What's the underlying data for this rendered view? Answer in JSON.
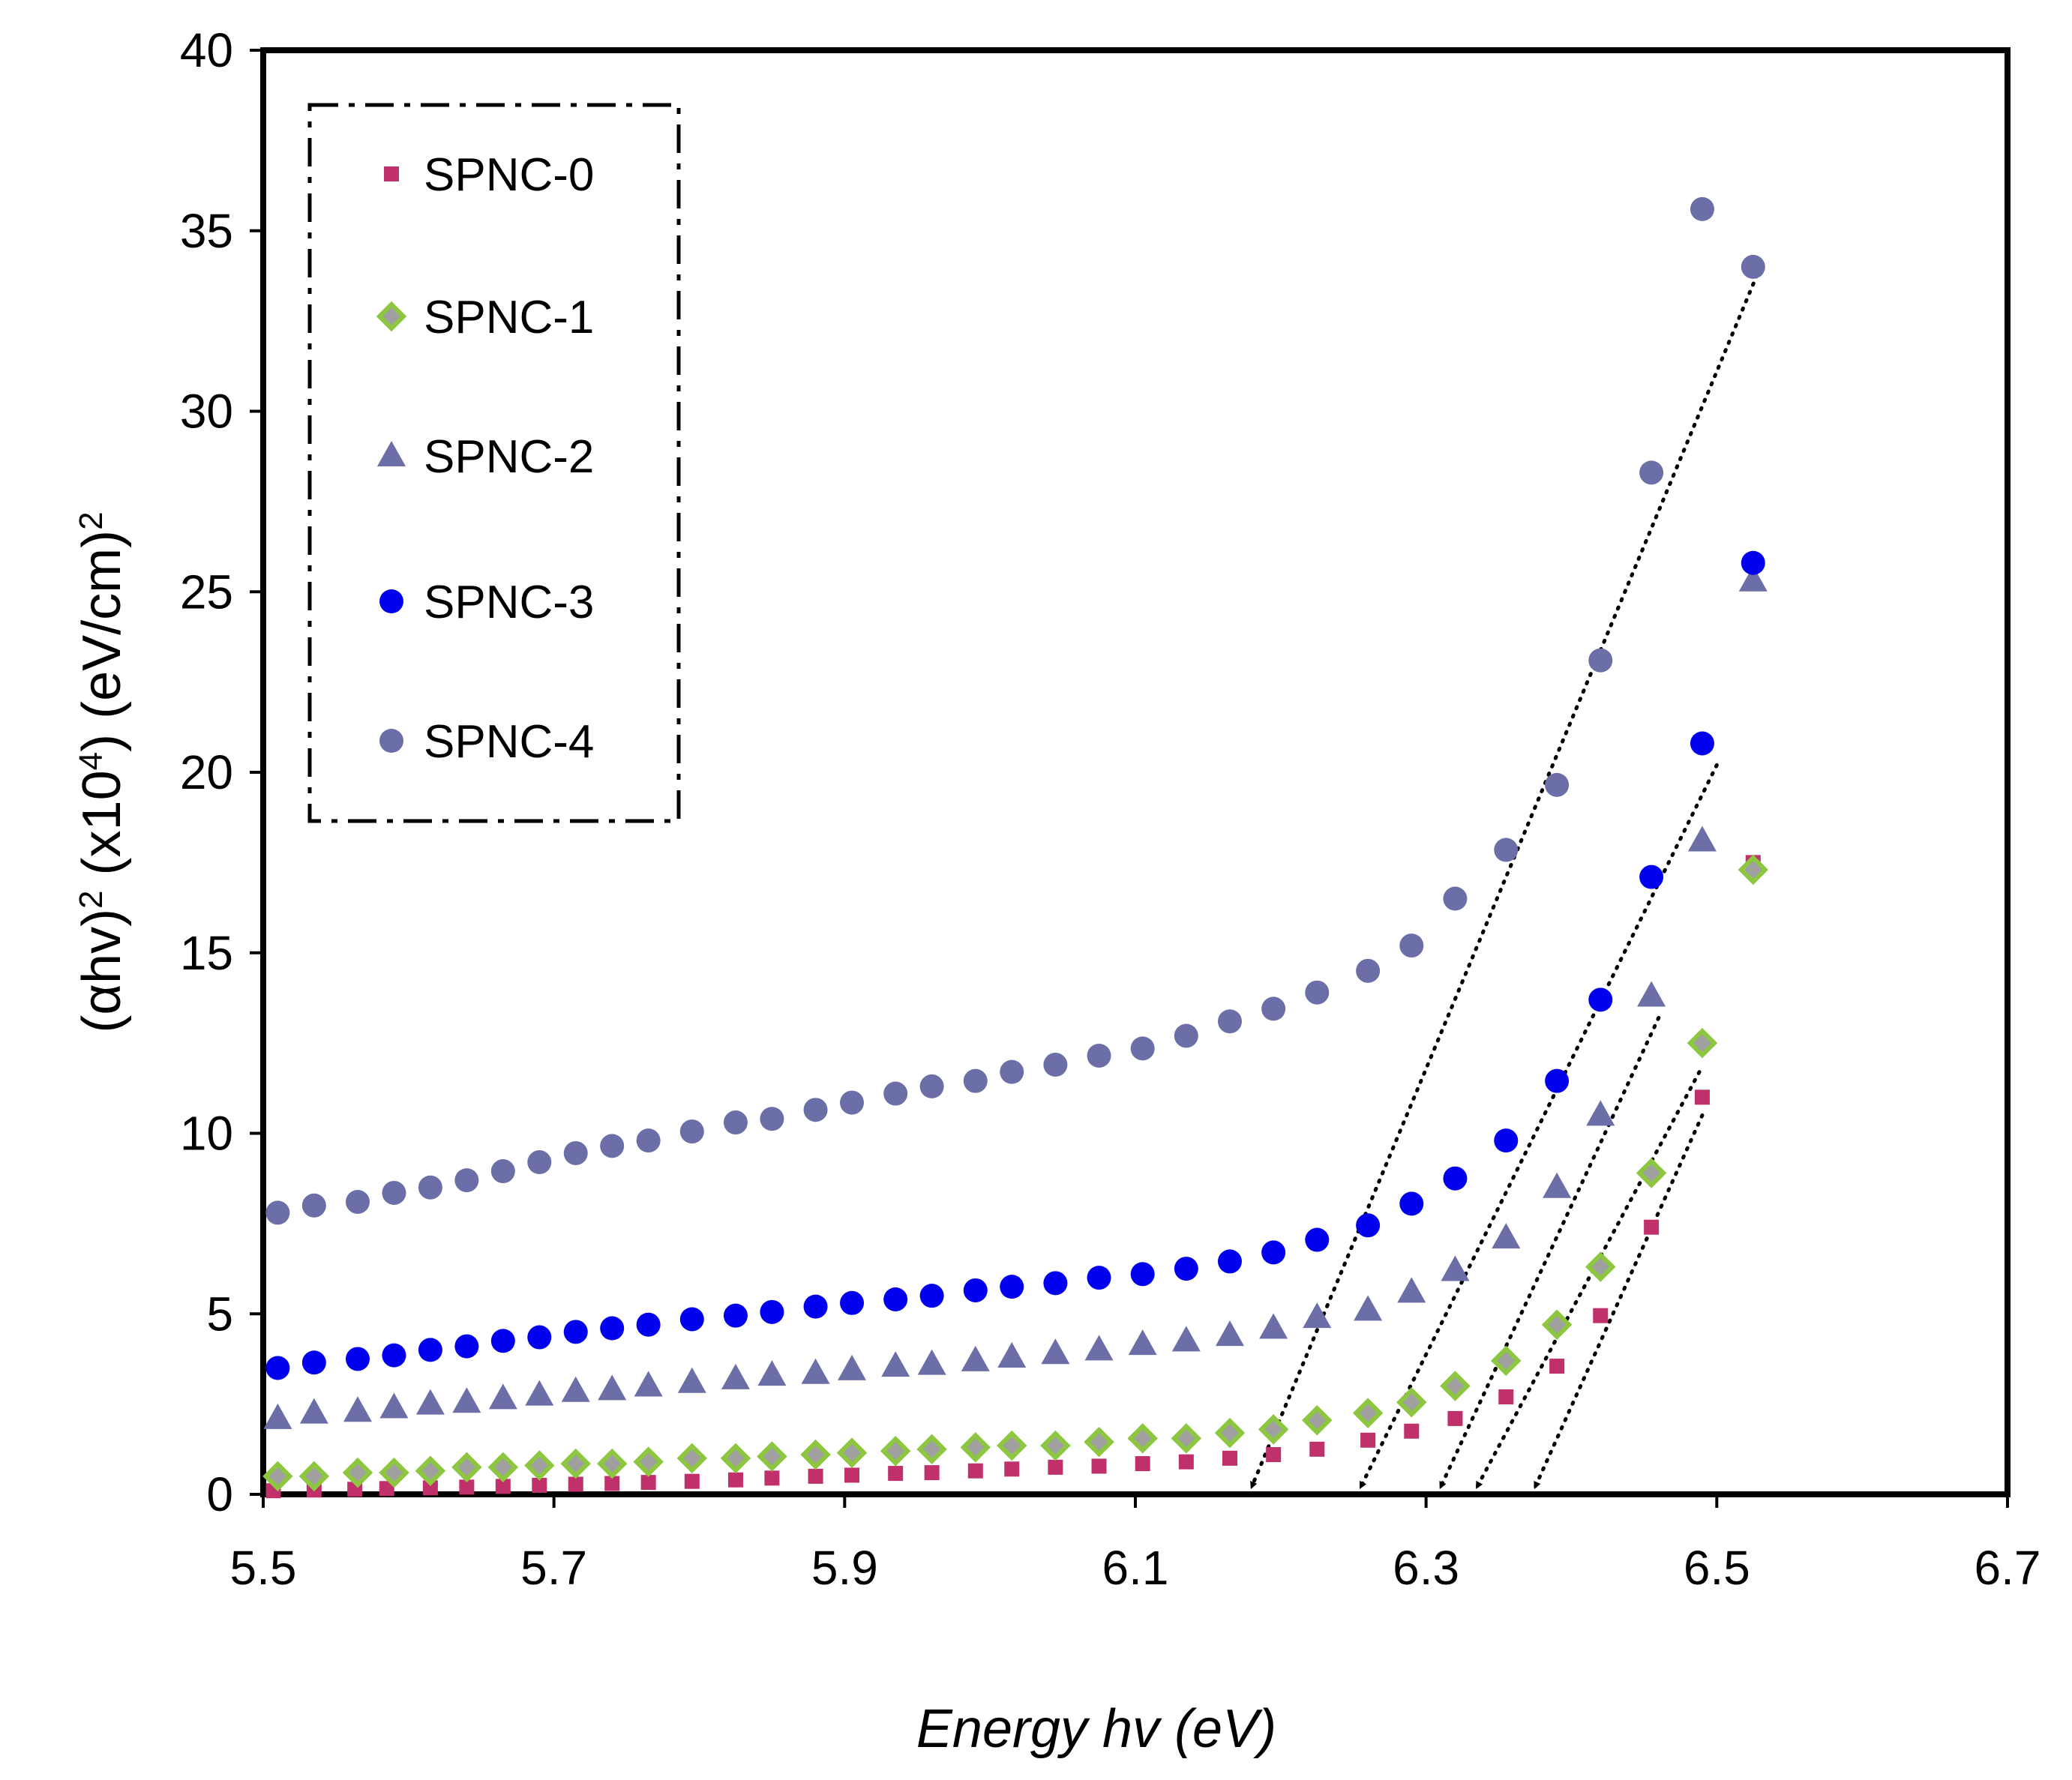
{
  "chart_data": {
    "type": "scatter",
    "title": "",
    "xlabel": "Energy hv (eV)",
    "ylabel": {
      "open": "(",
      "alpha": "α",
      "hv": "hv)",
      "exp2": "2",
      "x10": " (x10",
      "exp4": "4",
      "unit": ") (eV/cm)",
      "exp2b": "2"
    },
    "xlim": [
      5.5,
      6.7
    ],
    "ylim": [
      0,
      40
    ],
    "x_ticks": [
      "5.5",
      "5.7",
      "5.9",
      "6.1",
      "6.3",
      "6.5",
      "6.7"
    ],
    "y_ticks": [
      "0",
      "5",
      "10",
      "15",
      "20",
      "25",
      "30",
      "35",
      "40"
    ],
    "grid": false,
    "legend": "top-left",
    "series": [
      {
        "name": "SPNC-0",
        "marker": "square",
        "color": "#C0306A",
        "x": [
          5.507,
          5.535,
          5.563,
          5.585,
          5.615,
          5.64,
          5.665,
          5.69,
          5.715,
          5.74,
          5.765,
          5.795,
          5.825,
          5.85,
          5.88,
          5.905,
          5.935,
          5.96,
          5.99,
          6.015,
          6.045,
          6.075,
          6.105,
          6.135,
          6.165,
          6.195,
          6.225,
          6.26,
          6.29,
          6.32,
          6.355,
          6.39,
          6.42,
          6.455,
          6.49,
          6.525
        ],
        "y": [
          0.1,
          0.12,
          0.14,
          0.16,
          0.18,
          0.2,
          0.22,
          0.25,
          0.28,
          0.3,
          0.33,
          0.36,
          0.4,
          0.45,
          0.5,
          0.53,
          0.58,
          0.6,
          0.65,
          0.7,
          0.75,
          0.78,
          0.85,
          0.9,
          1.0,
          1.1,
          1.25,
          1.5,
          1.75,
          2.1,
          2.7,
          3.55,
          4.95,
          7.4,
          11.0,
          17.5
        ]
      },
      {
        "name": "SPNC-1",
        "marker": "diamond",
        "color": "#8DC63F",
        "x": [
          5.51,
          5.535,
          5.565,
          5.59,
          5.615,
          5.64,
          5.665,
          5.69,
          5.715,
          5.74,
          5.765,
          5.795,
          5.825,
          5.85,
          5.88,
          5.905,
          5.935,
          5.96,
          5.99,
          6.015,
          6.045,
          6.075,
          6.105,
          6.135,
          6.165,
          6.195,
          6.225,
          6.26,
          6.29,
          6.32,
          6.355,
          6.39,
          6.42,
          6.455,
          6.49,
          6.525
        ],
        "y": [
          0.5,
          0.5,
          0.6,
          0.6,
          0.65,
          0.75,
          0.75,
          0.8,
          0.85,
          0.85,
          0.9,
          1.0,
          1.0,
          1.05,
          1.1,
          1.15,
          1.2,
          1.25,
          1.3,
          1.35,
          1.35,
          1.45,
          1.55,
          1.55,
          1.7,
          1.8,
          2.05,
          2.25,
          2.55,
          3.0,
          3.7,
          4.7,
          6.3,
          8.9,
          12.5,
          17.3
        ]
      },
      {
        "name": "SPNC-2",
        "marker": "triangle",
        "color": "#6C6FA7",
        "x": [
          5.51,
          5.535,
          5.565,
          5.59,
          5.615,
          5.64,
          5.665,
          5.69,
          5.715,
          5.74,
          5.765,
          5.795,
          5.825,
          5.85,
          5.88,
          5.905,
          5.935,
          5.96,
          5.99,
          6.015,
          6.045,
          6.075,
          6.105,
          6.135,
          6.165,
          6.195,
          6.225,
          6.26,
          6.29,
          6.32,
          6.355,
          6.39,
          6.42,
          6.455,
          6.49,
          6.525
        ],
        "y": [
          2.1,
          2.25,
          2.3,
          2.4,
          2.5,
          2.55,
          2.65,
          2.75,
          2.85,
          2.9,
          3.0,
          3.1,
          3.2,
          3.3,
          3.35,
          3.45,
          3.55,
          3.6,
          3.7,
          3.8,
          3.9,
          4.0,
          4.15,
          4.25,
          4.4,
          4.6,
          4.9,
          5.1,
          5.6,
          6.2,
          7.1,
          8.5,
          10.5,
          13.8,
          18.1,
          25.3
        ]
      },
      {
        "name": "SPNC-3",
        "marker": "circle",
        "color": "#0000EE",
        "x": [
          5.51,
          5.535,
          5.565,
          5.59,
          5.615,
          5.64,
          5.665,
          5.69,
          5.715,
          5.74,
          5.765,
          5.795,
          5.825,
          5.85,
          5.88,
          5.905,
          5.935,
          5.96,
          5.99,
          6.015,
          6.045,
          6.075,
          6.105,
          6.135,
          6.165,
          6.195,
          6.225,
          6.26,
          6.29,
          6.32,
          6.355,
          6.39,
          6.42,
          6.455,
          6.49,
          6.525
        ],
        "y": [
          3.5,
          3.65,
          3.75,
          3.85,
          4.0,
          4.1,
          4.25,
          4.35,
          4.5,
          4.6,
          4.7,
          4.85,
          4.95,
          5.05,
          5.2,
          5.3,
          5.4,
          5.5,
          5.65,
          5.75,
          5.85,
          6.0,
          6.1,
          6.25,
          6.45,
          6.7,
          7.05,
          7.45,
          8.05,
          8.75,
          9.8,
          11.45,
          13.7,
          17.1,
          20.8,
          25.8
        ]
      },
      {
        "name": "SPNC-4",
        "marker": "circle",
        "color": "#6C6FA7",
        "x": [
          5.51,
          5.535,
          5.565,
          5.59,
          5.615,
          5.64,
          5.665,
          5.69,
          5.715,
          5.74,
          5.765,
          5.795,
          5.825,
          5.85,
          5.88,
          5.905,
          5.935,
          5.96,
          5.99,
          6.015,
          6.045,
          6.075,
          6.105,
          6.135,
          6.165,
          6.195,
          6.225,
          6.26,
          6.29,
          6.32,
          6.355,
          6.39,
          6.42,
          6.455,
          6.49,
          6.525
        ],
        "y": [
          7.8,
          8.0,
          8.1,
          8.35,
          8.5,
          8.7,
          8.95,
          9.2,
          9.45,
          9.65,
          9.8,
          10.05,
          10.3,
          10.4,
          10.65,
          10.85,
          11.1,
          11.3,
          11.45,
          11.7,
          11.9,
          12.15,
          12.35,
          12.7,
          13.1,
          13.45,
          13.9,
          14.5,
          15.2,
          16.5,
          17.85,
          19.65,
          23.1,
          28.3,
          35.6,
          34.0
        ]
      }
    ],
    "fit_lines": [
      {
        "series": "SPNC-0",
        "x1": 6.375,
        "y1": 0.2,
        "x2": 6.49,
        "y2": 10.5
      },
      {
        "series": "SPNC-1",
        "x1": 6.335,
        "y1": 0.2,
        "x2": 6.488,
        "y2": 11.7
      },
      {
        "series": "SPNC-2",
        "x1": 6.31,
        "y1": 0.2,
        "x2": 6.46,
        "y2": 13.2
      },
      {
        "series": "SPNC-3",
        "x1": 6.255,
        "y1": 0.2,
        "x2": 6.5,
        "y2": 20.2
      },
      {
        "series": "SPNC-4",
        "x1": 6.18,
        "y1": 0.2,
        "x2": 6.53,
        "y2": 34.0
      }
    ]
  }
}
